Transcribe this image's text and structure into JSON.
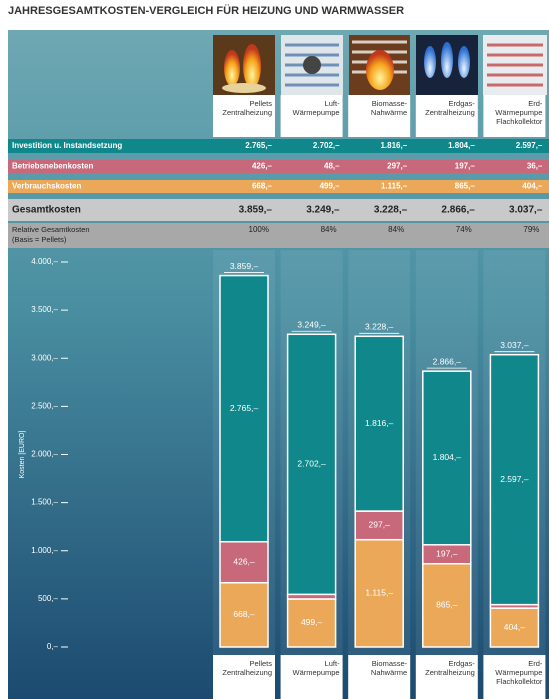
{
  "chart_data": {
    "type": "bar",
    "stacked": true,
    "title": "JAHRESGESAMTKOSTEN-VERGLEICH FÜR HEIZUNG UND WARMWASSER",
    "y_label": "Kosten [EURO]",
    "categories": [
      [
        "Pellets",
        "Zentralheizung"
      ],
      [
        "Luft-",
        "Wärmepumpe"
      ],
      [
        "Biomasse-",
        "Nahwärme"
      ],
      [
        "Erdgas-",
        "Zentralheizung"
      ],
      [
        "Erd-",
        "Wärmepumpe",
        "Flachkollektor"
      ]
    ],
    "series": [
      {
        "name": "Investition u. Instandsetzung",
        "color": "#0f878b",
        "values": [
          2765,
          2702,
          1816,
          1804,
          2597
        ],
        "value_labels": [
          "2.765,–",
          "2.702,–",
          "1.816,–",
          "1.804,–",
          "2.597,–"
        ]
      },
      {
        "name": "Betriebsnebenkosten",
        "color": "#c8687b",
        "values": [
          426,
          48,
          297,
          197,
          36
        ],
        "value_labels": [
          "426,–",
          "48,–",
          "297,–",
          "197,–",
          "36,–"
        ]
      },
      {
        "name": "Verbrauchskosten",
        "color": "#eaa858",
        "values": [
          668,
          499,
          1115,
          865,
          404
        ],
        "value_labels": [
          "668,–",
          "499,–",
          "1.115,–",
          "865,–",
          "404,–"
        ]
      }
    ],
    "totals": {
      "name": "Gesamtkosten",
      "values": [
        3859,
        3249,
        3228,
        2866,
        3037
      ],
      "value_labels": [
        "3.859,–",
        "3.249,–",
        "3.228,–",
        "2.866,–",
        "3.037,–"
      ]
    },
    "relative": {
      "name": [
        "Relative Gesamtkosten",
        "(Basis = Pellets)"
      ],
      "values": [
        100,
        84,
        84,
        74,
        79
      ],
      "value_labels": [
        "100%",
        "84%",
        "84%",
        "74%",
        "79%"
      ]
    },
    "ylim": [
      0,
      4000
    ],
    "yticks": [
      {
        "value": 0,
        "label": "0,–"
      },
      {
        "value": 500,
        "label": "500,–"
      },
      {
        "value": 1000,
        "label": "1.000,–"
      },
      {
        "value": 1500,
        "label": "1.500,–"
      },
      {
        "value": 2000,
        "label": "2.000,–"
      },
      {
        "value": 2500,
        "label": "2.500,–"
      },
      {
        "value": 3000,
        "label": "3.000,–"
      },
      {
        "value": 3500,
        "label": "3.500,–"
      },
      {
        "value": 4000,
        "label": "4.000,–"
      }
    ]
  }
}
